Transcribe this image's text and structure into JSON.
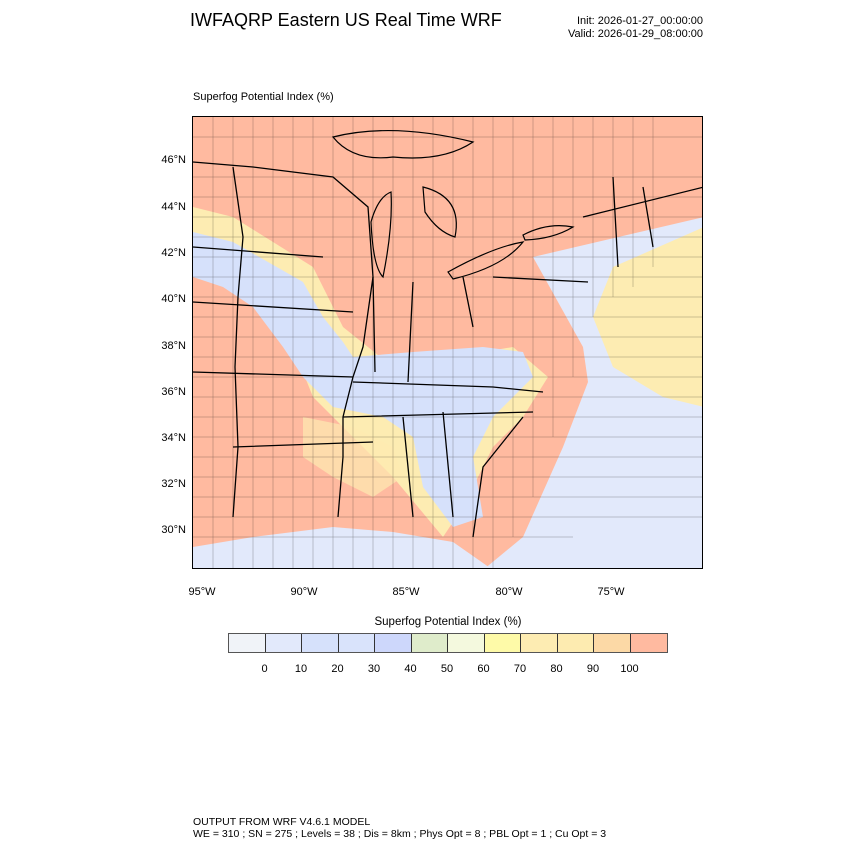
{
  "header": {
    "title": "IWFAQRP Eastern US Real Time WRF",
    "init": "Init: 2026-01-27_00:00:00",
    "valid": "Valid: 2026-01-29_08:00:00"
  },
  "plot": {
    "field_title": "Superfog Potential Index   (%)",
    "lat_labels": [
      "46°N",
      "44°N",
      "42°N",
      "40°N",
      "38°N",
      "36°N",
      "34°N",
      "32°N",
      "30°N"
    ],
    "lon_labels": [
      "95°W",
      "90°W",
      "85°W",
      "80°W",
      "75°W"
    ]
  },
  "colorbar": {
    "title": "Superfog Potential Index  (%)",
    "labels": [
      "0",
      "10",
      "20",
      "30",
      "40",
      "50",
      "60",
      "70",
      "80",
      "90",
      "100"
    ],
    "colors": [
      "#f0f3f8",
      "#e2e9fb",
      "#d6e1fb",
      "#d9e3fb",
      "#cdd7fb",
      "#dfeccb",
      "#f4f9de",
      "#fefaa8",
      "#fdecb2",
      "#fdebb0",
      "#fcd9a6",
      "#ffbaa0"
    ]
  },
  "footer": {
    "line1": "OUTPUT FROM WRF V4.6.1 MODEL",
    "line2": "WE = 310 ; SN = 275 ; Levels = 38 ; Dis = 8km ; Phys Opt = 8 ; PBL Opt = 1 ; Cu Opt = 3"
  }
}
